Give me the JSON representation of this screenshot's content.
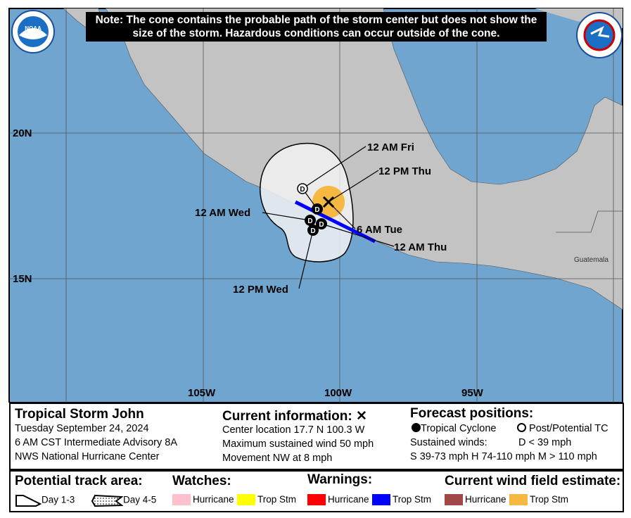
{
  "note": "Note: The cone contains the probable path of the storm center but does not show the size of the storm. Hazardous conditions can occur outside of the cone.",
  "logos": {
    "left": "NOAA",
    "right": "NATIONAL WEATHER SERVICE"
  },
  "map": {
    "lat_labels": [
      "20N",
      "15N"
    ],
    "lon_labels": [
      "105W",
      "100W",
      "95W"
    ],
    "country_label": "Guatemala",
    "colors": {
      "ocean": "#6fa5cf",
      "land": "#c3c3c3",
      "cone": "#f0f0f0",
      "warning_trop_stm": "#0000ff",
      "wind_trop_stm": "#f5b942"
    },
    "forecast_points": [
      {
        "label": "6 AM Tue",
        "marker": "x"
      },
      {
        "label": "12 PM Thu",
        "marker": "D"
      },
      {
        "label": "12 AM Wed",
        "marker": "D"
      },
      {
        "label": "12 PM Wed",
        "marker": "D"
      },
      {
        "label": "12 AM Thu",
        "marker": "D"
      },
      {
        "label": "12 AM Fri",
        "marker": "D-open"
      }
    ]
  },
  "info": {
    "storm_name": "Tropical Storm John",
    "date": "Tuesday September 24, 2024",
    "advisory": "6 AM CST Intermediate Advisory 8A",
    "center": "NWS National Hurricane Center",
    "current_title": "Current information: ✕",
    "location": "Center location 17.7 N 100.3 W",
    "wind": "Maximum sustained wind 50 mph",
    "movement": "Movement NW at 8 mph",
    "forecast_title": "Forecast positions:",
    "tc": "Tropical Cyclone",
    "post_tc": "Post/Potential TC",
    "sustained": "Sustained winds:",
    "d": "D < 39 mph",
    "shm": "S 39-73 mph  H 74-110 mph  M > 110 mph"
  },
  "legend": {
    "track_title": "Potential track area:",
    "day13": "Day 1-3",
    "day45": "Day 4-5",
    "watches_title": "Watches:",
    "warnings_title": "Warnings:",
    "wind_title": "Current wind field estimate:",
    "hurricane": "Hurricane",
    "tropstm": "Trop Stm"
  }
}
